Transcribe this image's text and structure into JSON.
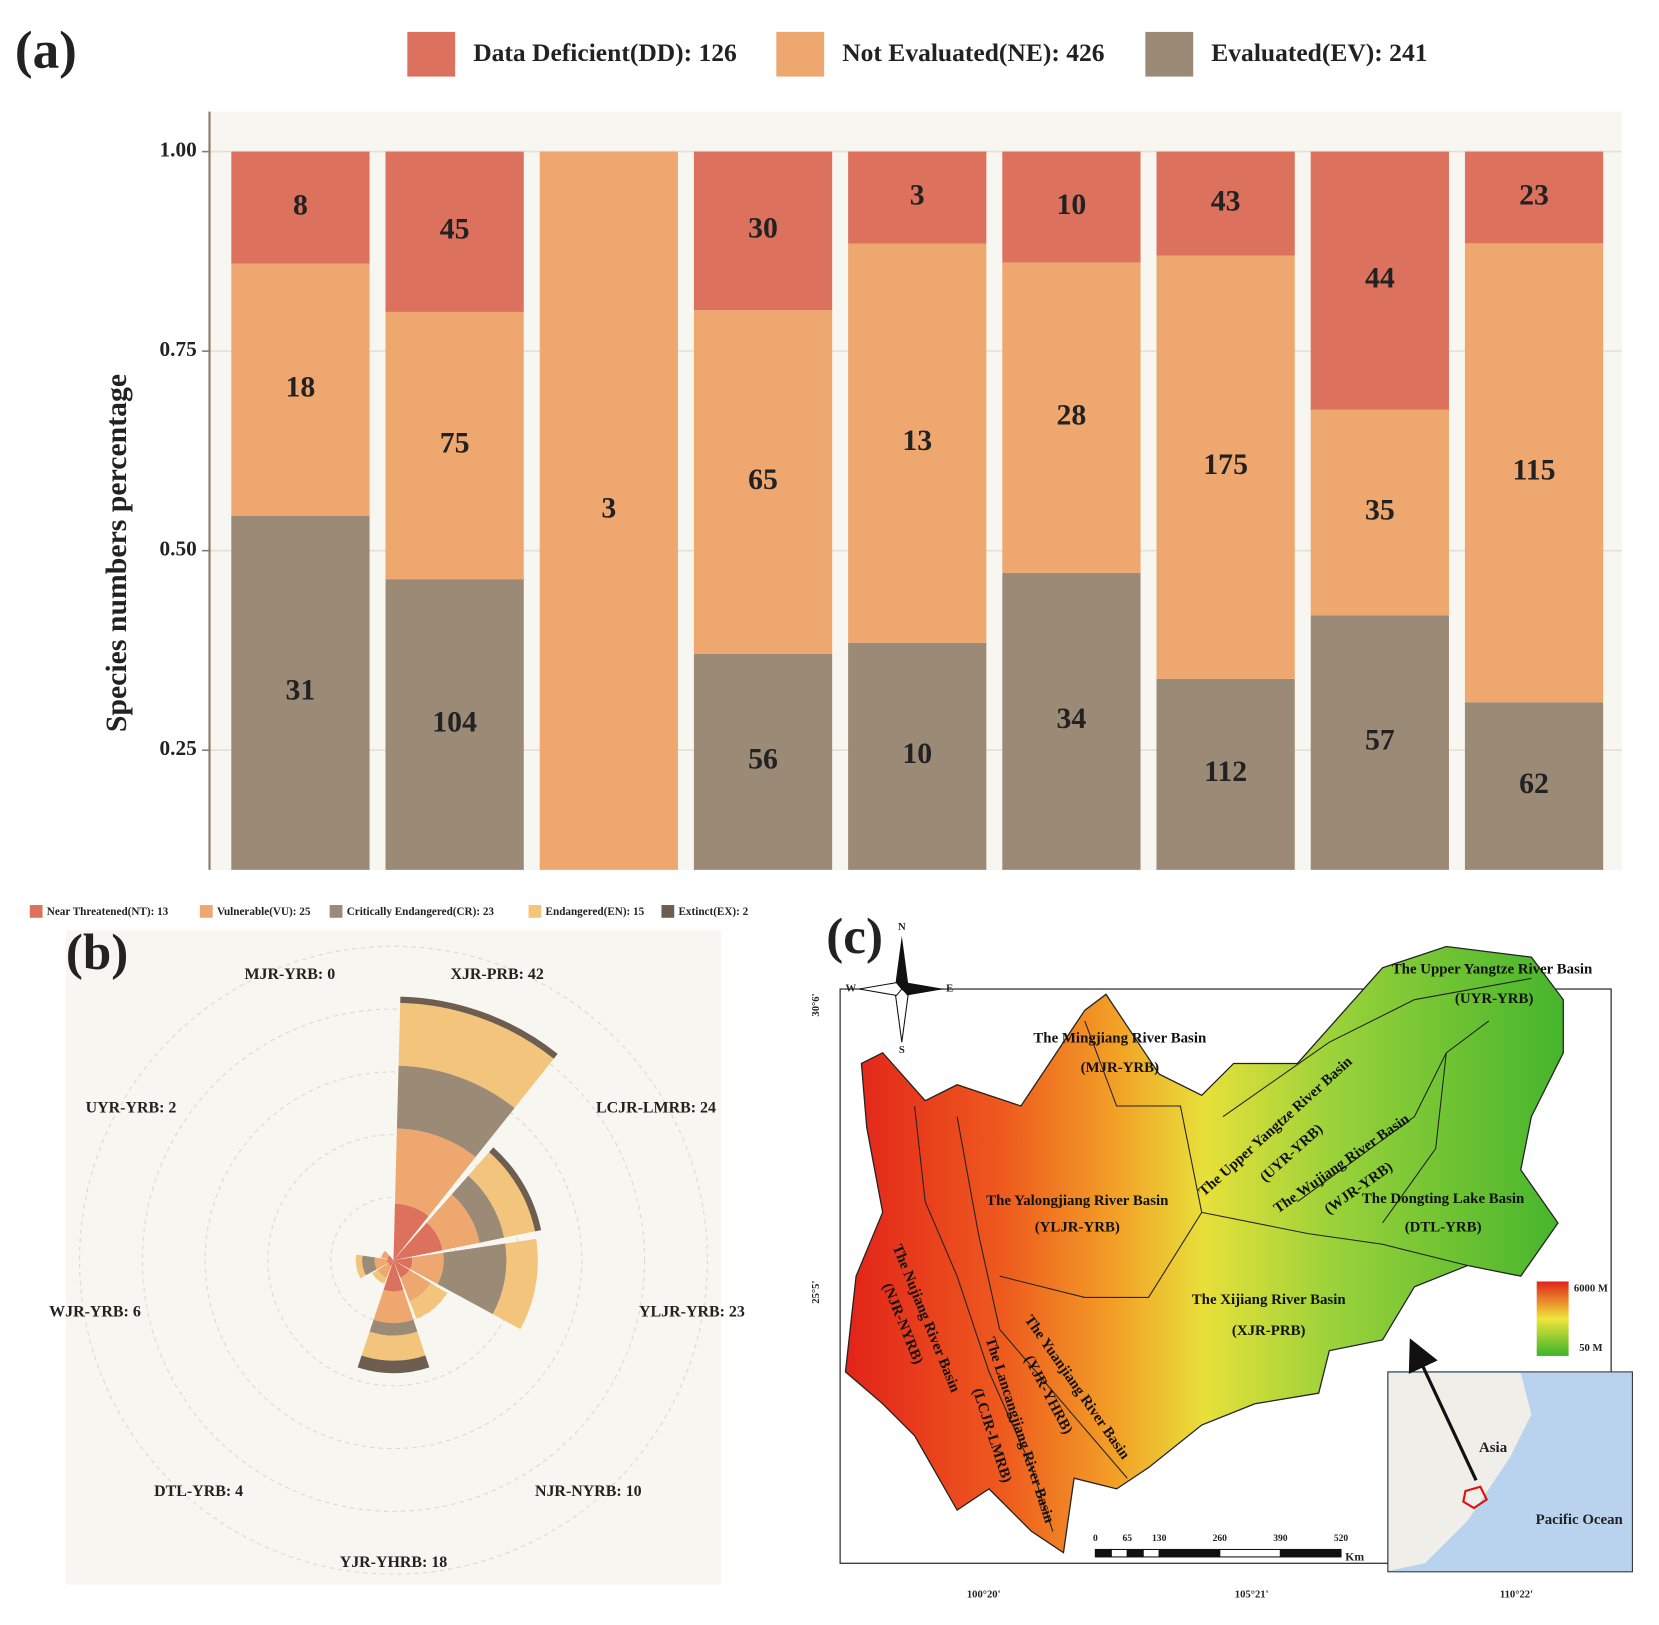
{
  "chart_data": [
    {
      "type": "bar",
      "stack": "percent",
      "title": "(a)",
      "ylabel": "Species numbers percentage",
      "categories": [
        null,
        null,
        null,
        null,
        null,
        null,
        null,
        null,
        null
      ],
      "series": [
        {
          "name": "Data Deficient(DD): 126",
          "color": "#dc725e",
          "values": [
            8,
            45,
            0,
            30,
            3,
            10,
            43,
            44,
            23
          ]
        },
        {
          "name": "Not Evaluated(NE): 426",
          "color": "#eea86f",
          "values": [
            18,
            75,
            3,
            65,
            13,
            28,
            175,
            35,
            115
          ]
        },
        {
          "name": "Evaluated(EV): 241",
          "color": "#9b8a76",
          "values": [
            31,
            104,
            0,
            56,
            10,
            34,
            112,
            57,
            62
          ]
        }
      ],
      "ylim": [
        0.1,
        1.05
      ],
      "yticks": [
        0.25,
        {
          "value": 0.5,
          "label": "0.50"
        },
        0.75,
        {
          "value": 1,
          "label": "1.00"
        }
      ],
      "grid": true
    },
    {
      "type": "polar_bar",
      "title": "(b)",
      "categories": [
        "XJR-PRB: 42",
        "LCJR-LMRB: 24",
        "YLJR-YRB: 23",
        "NJR-NYRB: 10",
        "YJR-YHRB: 18",
        "DTL-YRB: 4",
        "WJR-YRB: 6",
        "UYR-YRB: 2",
        "MJR-YRB: 0"
      ],
      "series": [
        {
          "name": "Near Threatened(NT): 13",
          "color": "#dc725e",
          "values": [
            9,
            8,
            3,
            3,
            5,
            1,
            1,
            1,
            0
          ]
        },
        {
          "name": "Vulnerable(VU): 25",
          "color": "#eea86f",
          "values": [
            12,
            6,
            5,
            4,
            5,
            2,
            2,
            1,
            0
          ]
        },
        {
          "name": "Critically Endangered(CR): 23",
          "color": "#9b8a76",
          "values": [
            10,
            4,
            10,
            0,
            2,
            0,
            2,
            0,
            0
          ]
        },
        {
          "name": "Endangered(EN): 15",
          "color": "#f3c57c",
          "values": [
            10,
            5,
            5,
            3,
            4,
            1,
            1,
            0,
            0
          ]
        },
        {
          "name": "Extinct(EX): 2",
          "color": "#6e5e50",
          "values": [
            1,
            1,
            0,
            0,
            2,
            0,
            0,
            0,
            0
          ]
        }
      ],
      "rlim": [
        0,
        52
      ],
      "rticks": [
        10,
        20,
        30,
        40,
        50
      ],
      "grid": true
    }
  ],
  "map": {
    "title": "(c)",
    "labels": [
      "The Upper Yangtze River Basin",
      "(UYR-YRB)",
      "The Mingjiang River Basin",
      "(MJR-YRB)",
      "The Upper Yangtze River Basin",
      "(UYR-YRB)",
      "The Wujiang River Basin",
      "(WJR-YRB)",
      "The Dongting Lake Basin",
      "(DTL-YRB)",
      "The Yalongjiang River Basin",
      "(YLJR-YRB)",
      "The Xijiang River Basin",
      "(XJR-PRB)",
      "The Nujiang River Basin",
      "(NJR-NYRB)",
      "The Lancangjiang River Basin",
      "(LCJR-LMRB)",
      "The Yuanjiang River Basin",
      "(YJR-YHRB)"
    ],
    "compass": [
      "N",
      "S",
      "W",
      "E"
    ],
    "latitudes": [
      "30°6'",
      "25°5'"
    ],
    "longitudes": [
      "100°20'",
      "105°21'",
      "110°22'"
    ],
    "elevation": [
      "6000 M",
      "50 M"
    ],
    "scale": [
      "0",
      "65",
      "130",
      "260",
      "390",
      "520"
    ],
    "scale_unit": "Km",
    "inset": [
      "Asia",
      "Pacific Ocean"
    ]
  }
}
